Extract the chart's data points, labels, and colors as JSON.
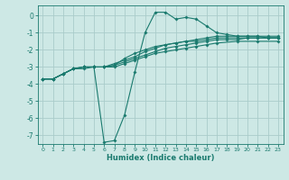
{
  "title": "",
  "xlabel": "Humidex (Indice chaleur)",
  "ylabel": "",
  "xlim": [
    -0.5,
    23.5
  ],
  "ylim": [
    -7.5,
    0.6
  ],
  "yticks": [
    0,
    -1,
    -2,
    -3,
    -4,
    -5,
    -6,
    -7
  ],
  "xticks": [
    0,
    1,
    2,
    3,
    4,
    5,
    6,
    7,
    8,
    9,
    10,
    11,
    12,
    13,
    14,
    15,
    16,
    17,
    18,
    19,
    20,
    21,
    22,
    23
  ],
  "bg_color": "#cde8e5",
  "grid_color": "#aaccca",
  "line_color": "#1a7a6e",
  "lines": [
    [
      [
        0,
        -3.7
      ],
      [
        1,
        -3.7
      ],
      [
        2,
        -3.4
      ],
      [
        3,
        -3.1
      ],
      [
        4,
        -3.1
      ],
      [
        5,
        -3.0
      ],
      [
        6,
        -7.4
      ],
      [
        7,
        -7.3
      ],
      [
        8,
        -5.8
      ],
      [
        9,
        -3.3
      ],
      [
        10,
        -1.0
      ],
      [
        11,
        0.2
      ],
      [
        12,
        0.2
      ],
      [
        13,
        -0.2
      ],
      [
        14,
        -0.1
      ],
      [
        15,
        -0.2
      ],
      [
        16,
        -0.6
      ],
      [
        17,
        -1.0
      ],
      [
        18,
        -1.1
      ],
      [
        19,
        -1.2
      ],
      [
        20,
        -1.2
      ],
      [
        21,
        -1.2
      ],
      [
        22,
        -1.3
      ],
      [
        23,
        -1.3
      ]
    ],
    [
      [
        0,
        -3.7
      ],
      [
        1,
        -3.7
      ],
      [
        2,
        -3.4
      ],
      [
        3,
        -3.1
      ],
      [
        4,
        -3.0
      ],
      [
        5,
        -3.0
      ],
      [
        6,
        -3.0
      ],
      [
        7,
        -2.8
      ],
      [
        8,
        -2.6
      ],
      [
        9,
        -2.4
      ],
      [
        10,
        -2.1
      ],
      [
        11,
        -1.9
      ],
      [
        12,
        -1.7
      ],
      [
        13,
        -1.6
      ],
      [
        14,
        -1.5
      ],
      [
        15,
        -1.4
      ],
      [
        16,
        -1.3
      ],
      [
        17,
        -1.2
      ],
      [
        18,
        -1.2
      ],
      [
        19,
        -1.2
      ],
      [
        20,
        -1.2
      ],
      [
        21,
        -1.2
      ],
      [
        22,
        -1.2
      ],
      [
        23,
        -1.2
      ]
    ],
    [
      [
        0,
        -3.7
      ],
      [
        1,
        -3.7
      ],
      [
        2,
        -3.4
      ],
      [
        3,
        -3.1
      ],
      [
        4,
        -3.0
      ],
      [
        5,
        -3.0
      ],
      [
        6,
        -3.0
      ],
      [
        7,
        -2.9
      ],
      [
        8,
        -2.7
      ],
      [
        9,
        -2.5
      ],
      [
        10,
        -2.3
      ],
      [
        11,
        -2.1
      ],
      [
        12,
        -1.9
      ],
      [
        13,
        -1.8
      ],
      [
        14,
        -1.7
      ],
      [
        15,
        -1.6
      ],
      [
        16,
        -1.5
      ],
      [
        17,
        -1.4
      ],
      [
        18,
        -1.4
      ],
      [
        19,
        -1.4
      ],
      [
        20,
        -1.3
      ],
      [
        21,
        -1.3
      ],
      [
        22,
        -1.3
      ],
      [
        23,
        -1.3
      ]
    ],
    [
      [
        0,
        -3.7
      ],
      [
        1,
        -3.7
      ],
      [
        2,
        -3.4
      ],
      [
        3,
        -3.1
      ],
      [
        4,
        -3.0
      ],
      [
        5,
        -3.0
      ],
      [
        6,
        -3.0
      ],
      [
        7,
        -3.0
      ],
      [
        8,
        -2.8
      ],
      [
        9,
        -2.6
      ],
      [
        10,
        -2.4
      ],
      [
        11,
        -2.2
      ],
      [
        12,
        -2.1
      ],
      [
        13,
        -2.0
      ],
      [
        14,
        -1.9
      ],
      [
        15,
        -1.8
      ],
      [
        16,
        -1.7
      ],
      [
        17,
        -1.6
      ],
      [
        19,
        -1.5
      ],
      [
        21,
        -1.5
      ],
      [
        23,
        -1.5
      ]
    ],
    [
      [
        4,
        -3.0
      ],
      [
        5,
        -3.0
      ],
      [
        6,
        -3.0
      ],
      [
        7,
        -2.9
      ],
      [
        8,
        -2.5
      ],
      [
        9,
        -2.2
      ],
      [
        10,
        -2.0
      ],
      [
        11,
        -1.8
      ],
      [
        12,
        -1.7
      ],
      [
        13,
        -1.6
      ],
      [
        14,
        -1.5
      ],
      [
        15,
        -1.5
      ],
      [
        16,
        -1.4
      ],
      [
        17,
        -1.3
      ],
      [
        18,
        -1.3
      ],
      [
        19,
        -1.3
      ],
      [
        20,
        -1.3
      ],
      [
        21,
        -1.3
      ],
      [
        22,
        -1.3
      ],
      [
        23,
        -1.3
      ]
    ]
  ]
}
